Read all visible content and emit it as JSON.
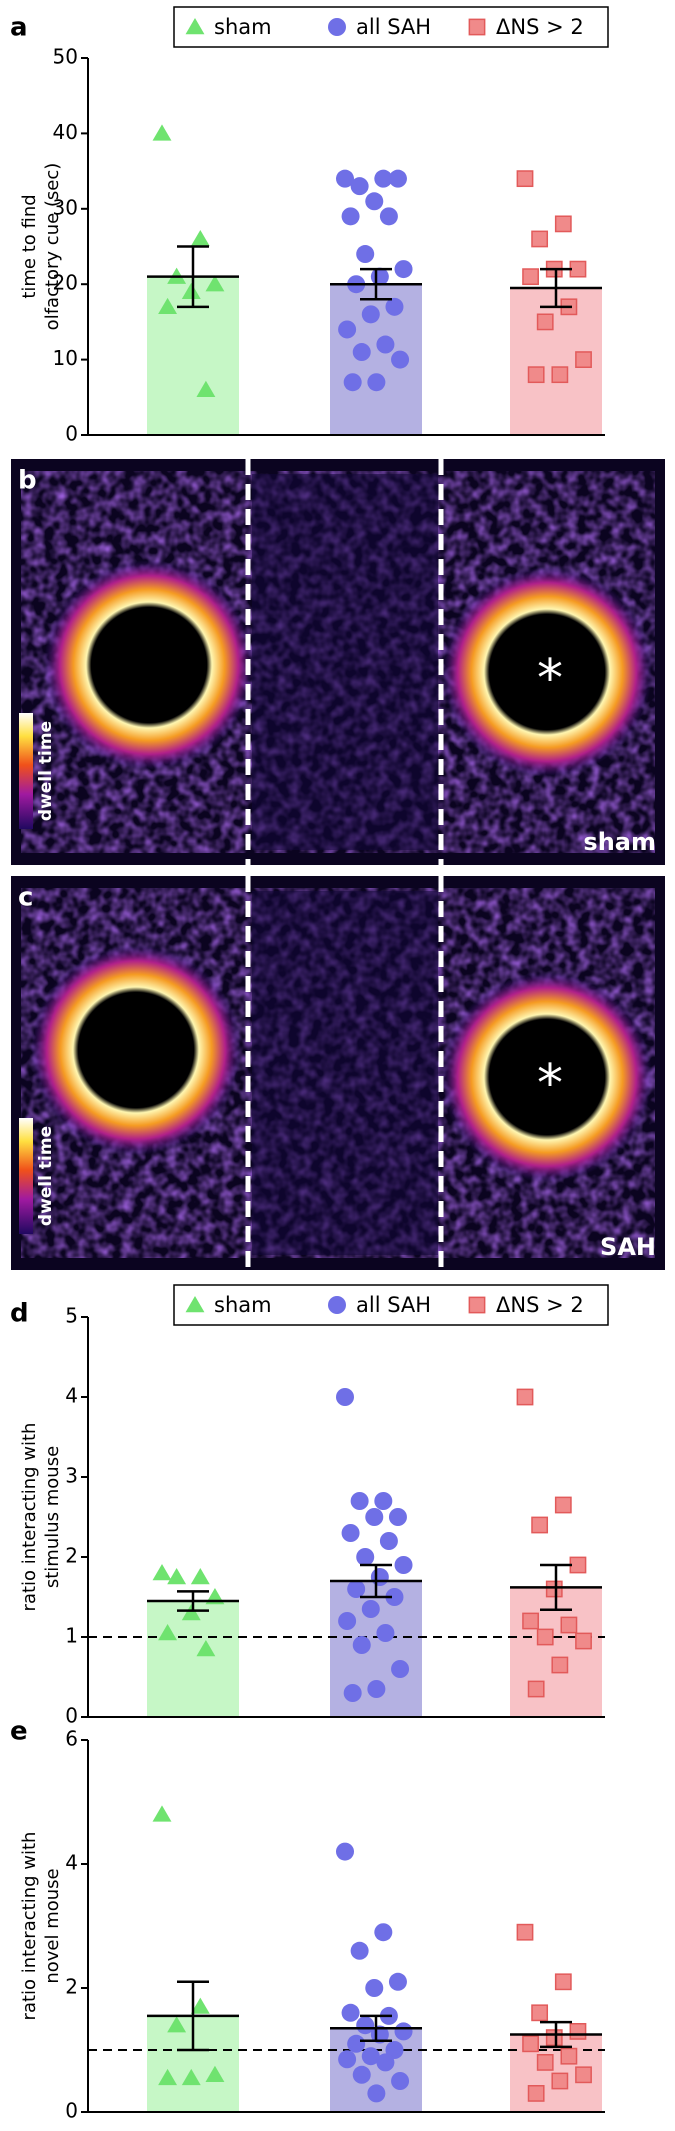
{
  "chart_data": [
    {
      "type": "bar-scatter",
      "panel": "a",
      "ylabel": [
        "time to find",
        "olfactory cue (sec)"
      ],
      "ylim": [
        0,
        50
      ],
      "yticks": [
        0,
        10,
        20,
        30,
        40,
        50
      ],
      "legend": true,
      "series": [
        {
          "name": "sham",
          "color": "#6fe36f",
          "bar_color": "#c6f7c6",
          "marker": "triangle",
          "mean": 21,
          "error": 4,
          "values": [
            40,
            26,
            21,
            20,
            19,
            17,
            6
          ]
        },
        {
          "name": "all SAH",
          "color": "#6f6fe6",
          "bar_color": "#b4b1e2",
          "marker": "circle",
          "mean": 20,
          "error": 2,
          "values": [
            34,
            34,
            33,
            34,
            31,
            29,
            29,
            24,
            22,
            21,
            20,
            17,
            16,
            14,
            12,
            11,
            10,
            7,
            7
          ]
        },
        {
          "name": "ΔNS > 2",
          "color": "#f08a8a",
          "bar_color": "#f8c2c6",
          "marker": "square",
          "mean": 19.5,
          "error": 2.5,
          "values": [
            34,
            28,
            26,
            22,
            22,
            21,
            17,
            15,
            10,
            8,
            8
          ]
        }
      ]
    },
    {
      "type": "bar-scatter",
      "panel": "d",
      "ylabel": [
        "ratio interacting with",
        "stimulus mouse"
      ],
      "ylim": [
        0,
        5
      ],
      "yticks": [
        0,
        1,
        2,
        3,
        4,
        5
      ],
      "legend": true,
      "reference_line": 1,
      "series": [
        {
          "name": "sham",
          "color": "#6fe36f",
          "bar_color": "#c6f7c6",
          "marker": "triangle",
          "mean": 1.45,
          "error": 0.12,
          "values": [
            1.8,
            1.75,
            1.75,
            1.5,
            1.3,
            1.05,
            0.85
          ]
        },
        {
          "name": "all SAH",
          "color": "#6f6fe6",
          "bar_color": "#b4b1e2",
          "marker": "circle",
          "mean": 1.7,
          "error": 0.2,
          "values": [
            4.0,
            2.7,
            2.7,
            2.5,
            2.5,
            2.3,
            2.2,
            2.0,
            1.9,
            1.75,
            1.6,
            1.5,
            1.35,
            1.2,
            1.05,
            0.9,
            0.6,
            0.35,
            0.3
          ]
        },
        {
          "name": "ΔNS > 2",
          "color": "#f08a8a",
          "bar_color": "#f8c2c6",
          "marker": "square",
          "mean": 1.62,
          "error": 0.28,
          "values": [
            4.0,
            2.65,
            2.4,
            1.9,
            1.6,
            1.2,
            1.15,
            1.0,
            0.95,
            0.65,
            0.35
          ]
        }
      ]
    },
    {
      "type": "bar-scatter",
      "panel": "e",
      "ylabel": [
        "ratio interacting with",
        "novel mouse"
      ],
      "ylim": [
        0,
        6
      ],
      "yticks": [
        0,
        2,
        4,
        6
      ],
      "legend": false,
      "reference_line": 1,
      "series": [
        {
          "color": "#6fe36f",
          "bar_color": "#c6f7c6",
          "marker": "triangle",
          "mean": 1.55,
          "error": 0.55,
          "values": [
            4.8,
            1.7,
            1.4,
            0.6,
            0.55,
            0.55
          ]
        },
        {
          "color": "#6f6fe6",
          "bar_color": "#b4b1e2",
          "marker": "circle",
          "mean": 1.35,
          "error": 0.2,
          "values": [
            4.2,
            2.9,
            2.6,
            2.1,
            2.0,
            1.6,
            1.55,
            1.4,
            1.3,
            1.25,
            1.1,
            1.0,
            0.9,
            0.85,
            0.8,
            0.6,
            0.5,
            0.3
          ]
        },
        {
          "color": "#f08a8a",
          "bar_color": "#f8c2c6",
          "marker": "square",
          "mean": 1.25,
          "error": 0.2,
          "values": [
            2.9,
            2.1,
            1.6,
            1.3,
            1.2,
            1.1,
            0.9,
            0.8,
            0.6,
            0.5,
            0.3
          ]
        }
      ]
    }
  ],
  "heatmaps": [
    {
      "panel": "b",
      "group": "sham",
      "scale_label": "dwell time",
      "marker": "*"
    },
    {
      "panel": "c",
      "group": "SAH",
      "scale_label": "dwell time",
      "marker": "*"
    }
  ]
}
